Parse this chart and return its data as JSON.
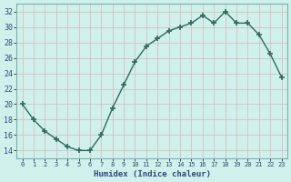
{
  "x": [
    0,
    1,
    2,
    3,
    4,
    5,
    6,
    7,
    8,
    9,
    10,
    11,
    12,
    13,
    14,
    15,
    16,
    17,
    18,
    19,
    20,
    21,
    22,
    23
  ],
  "y": [
    20,
    18,
    16.5,
    15.5,
    14.5,
    14,
    14,
    16,
    19.5,
    22.5,
    25.5,
    27.5,
    28.5,
    29.5,
    30,
    30.5,
    31.5,
    30.5,
    32,
    30.5,
    30.5,
    29,
    26.5,
    23.5
  ],
  "line_color": "#2e6b5e",
  "marker": "+",
  "marker_size": 4,
  "marker_lw": 1.2,
  "bg_color": "#cff0eb",
  "grid_color_major": "#d4b8b8",
  "grid_color_minor": "#d4b8b8",
  "xlabel": "Humidex (Indice chaleur)",
  "xlim": [
    -0.5,
    23.5
  ],
  "ylim": [
    13,
    33
  ],
  "yticks": [
    14,
    16,
    18,
    20,
    22,
    24,
    26,
    28,
    30,
    32
  ],
  "xtick_labels": [
    "0",
    "1",
    "2",
    "3",
    "4",
    "5",
    "6",
    "7",
    "8",
    "9",
    "10",
    "11",
    "12",
    "13",
    "14",
    "15",
    "16",
    "17",
    "18",
    "19",
    "20",
    "21",
    "22",
    "23"
  ],
  "tick_color": "#2e4a7a",
  "xlabel_color": "#2e4a7a",
  "line_width": 1.0
}
